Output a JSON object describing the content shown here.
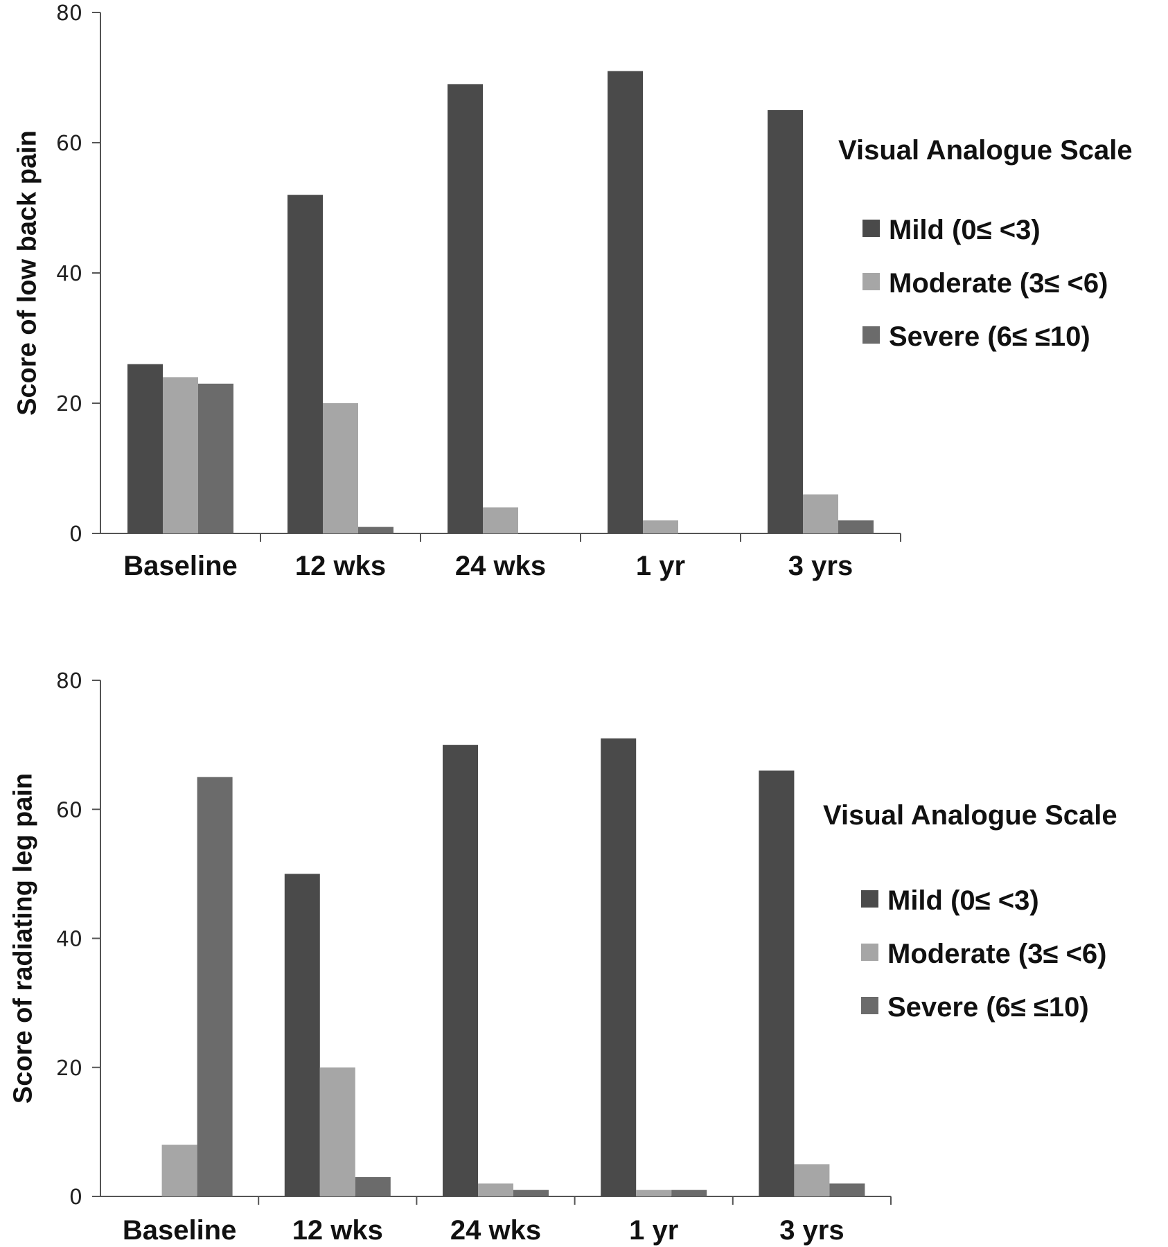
{
  "chart_data": [
    {
      "type": "bar",
      "title": "",
      "xlabel": "",
      "ylabel": "Score of low back pain",
      "ylim": [
        0,
        80
      ],
      "yticks": [
        0,
        20,
        40,
        60,
        80
      ],
      "categories": [
        "Baseline",
        "12 wks",
        "24 wks",
        "1 yr",
        "3 yrs"
      ],
      "legend_title": "Visual Analogue Scale",
      "legend_position": "right",
      "grid": false,
      "series": [
        {
          "name": "Mild (0≤ <3)",
          "color": "#4a4a4a",
          "values": [
            26,
            52,
            69,
            71,
            65
          ]
        },
        {
          "name": "Moderate (3≤ <6)",
          "color": "#a6a6a6",
          "values": [
            24,
            20,
            4,
            2,
            6
          ]
        },
        {
          "name": "Severe (6≤ ≤10)",
          "color": "#6b6b6b",
          "values": [
            23,
            1,
            0,
            0,
            2
          ]
        }
      ]
    },
    {
      "type": "bar",
      "title": "",
      "xlabel": "",
      "ylabel": "Score of radiating leg pain",
      "ylim": [
        0,
        80
      ],
      "yticks": [
        0,
        20,
        40,
        60,
        80
      ],
      "categories": [
        "Baseline",
        "12 wks",
        "24 wks",
        "1 yr",
        "3 yrs"
      ],
      "legend_title": "Visual Analogue Scale",
      "legend_position": "right",
      "grid": false,
      "series": [
        {
          "name": "Mild (0≤ <3)",
          "color": "#4a4a4a",
          "values": [
            0,
            50,
            70,
            71,
            66
          ]
        },
        {
          "name": "Moderate (3≤ <6)",
          "color": "#a6a6a6",
          "values": [
            8,
            20,
            2,
            1,
            5
          ]
        },
        {
          "name": "Severe (6≤ ≤10)",
          "color": "#6b6b6b",
          "values": [
            65,
            3,
            1,
            1,
            2
          ]
        }
      ]
    }
  ]
}
